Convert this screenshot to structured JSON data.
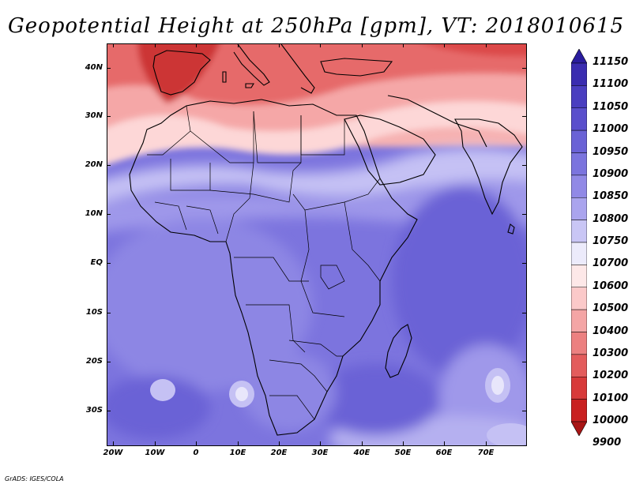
{
  "title": "Geopotential Height at 250hPa [gpm], VT: 2018010615",
  "footer": "GrADS: IGES/COLA",
  "lat_labels": [
    "40N",
    "30N",
    "20N",
    "10N",
    "EQ",
    "10S",
    "20S",
    "30S"
  ],
  "lon_labels": [
    "20W",
    "10W",
    "0",
    "10E",
    "20E",
    "30E",
    "40E",
    "50E",
    "60E",
    "70E"
  ],
  "colorbar": {
    "labels": [
      "11150",
      "11100",
      "11050",
      "11000",
      "10950",
      "10900",
      "10850",
      "10800",
      "10750",
      "10700",
      "10600",
      "10500",
      "10400",
      "10300",
      "10200",
      "10100",
      "10000",
      "9900"
    ],
    "colors": [
      "#2a1c9e",
      "#3a2cb0",
      "#4a3ec0",
      "#5a4fcc",
      "#6a62d6",
      "#7b74de",
      "#9189e6",
      "#aaa4ee",
      "#c9c6f5",
      "#ecebfb",
      "#fde8e8",
      "#fbc9c9",
      "#f4a5a5",
      "#ec8080",
      "#e35c5c",
      "#d83a3a",
      "#c92020",
      "#a81515"
    ]
  }
}
